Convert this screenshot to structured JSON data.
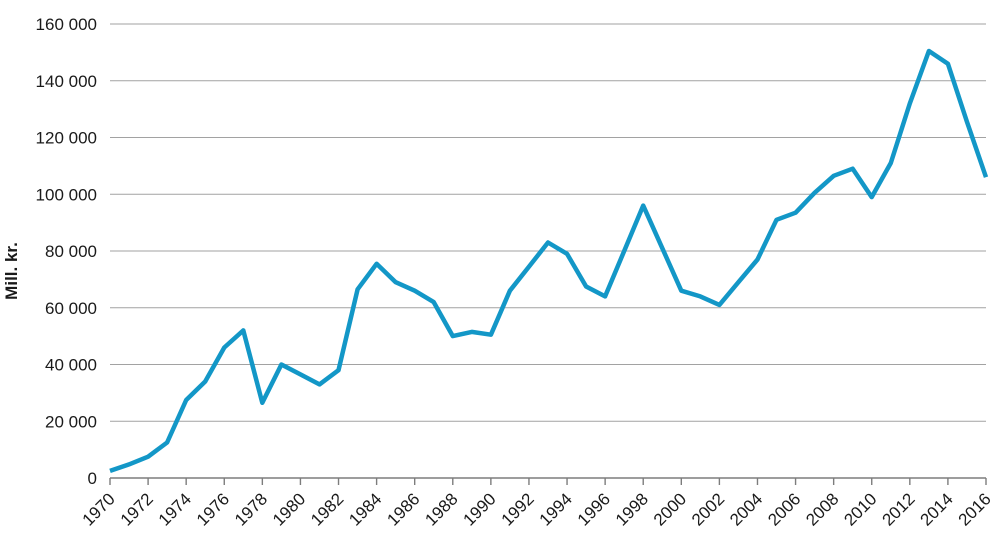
{
  "chart_data": {
    "type": "line",
    "title": "",
    "xlabel": "",
    "ylabel": "Mill. kr.",
    "xlim": [
      1970,
      2016
    ],
    "ylim": [
      0,
      160000
    ],
    "grid": "horizontal",
    "legend": "none",
    "x": [
      1970,
      1971,
      1972,
      1973,
      1974,
      1975,
      1976,
      1977,
      1978,
      1979,
      1980,
      1981,
      1982,
      1983,
      1984,
      1985,
      1986,
      1987,
      1988,
      1989,
      1990,
      1991,
      1992,
      1993,
      1994,
      1995,
      1996,
      1997,
      1998,
      1999,
      2000,
      2001,
      2002,
      2003,
      2004,
      2005,
      2006,
      2007,
      2008,
      2009,
      2010,
      2011,
      2012,
      2013,
      2014,
      2015,
      2016
    ],
    "series": [
      {
        "name": "Mill. kr.",
        "values": [
          2500,
          4800,
          7500,
          12500,
          27500,
          34000,
          46000,
          52000,
          26500,
          40000,
          36500,
          33000,
          38000,
          66500,
          75500,
          69000,
          66000,
          62000,
          50000,
          51500,
          50500,
          66000,
          74500,
          83000,
          79000,
          67500,
          64000,
          80000,
          96000,
          81000,
          66000,
          64000,
          61000,
          69000,
          77000,
          91000,
          93500,
          100500,
          106500,
          109000,
          99000,
          111000,
          132000,
          150500,
          146000,
          125500,
          106000
        ]
      }
    ],
    "yticks": [
      {
        "v": 0,
        "label": "0"
      },
      {
        "v": 20000,
        "label": "20 000"
      },
      {
        "v": 40000,
        "label": "40 000"
      },
      {
        "v": 60000,
        "label": "60 000"
      },
      {
        "v": 80000,
        "label": "80 000"
      },
      {
        "v": 100000,
        "label": "100 000"
      },
      {
        "v": 120000,
        "label": "120 000"
      },
      {
        "v": 140000,
        "label": "140 000"
      },
      {
        "v": 160000,
        "label": "160 000"
      }
    ],
    "xtick_years": [
      1970,
      1972,
      1974,
      1976,
      1978,
      1980,
      1982,
      1984,
      1986,
      1988,
      1990,
      1992,
      1994,
      1996,
      1998,
      2000,
      2002,
      2004,
      2006,
      2008,
      2010,
      2012,
      2014,
      2016
    ]
  },
  "colors": {
    "line": "#1397c7",
    "grid": "#a2a2a2",
    "axis": "#7d7d7d",
    "text": "#1a1a1a",
    "background": "#ffffff"
  }
}
